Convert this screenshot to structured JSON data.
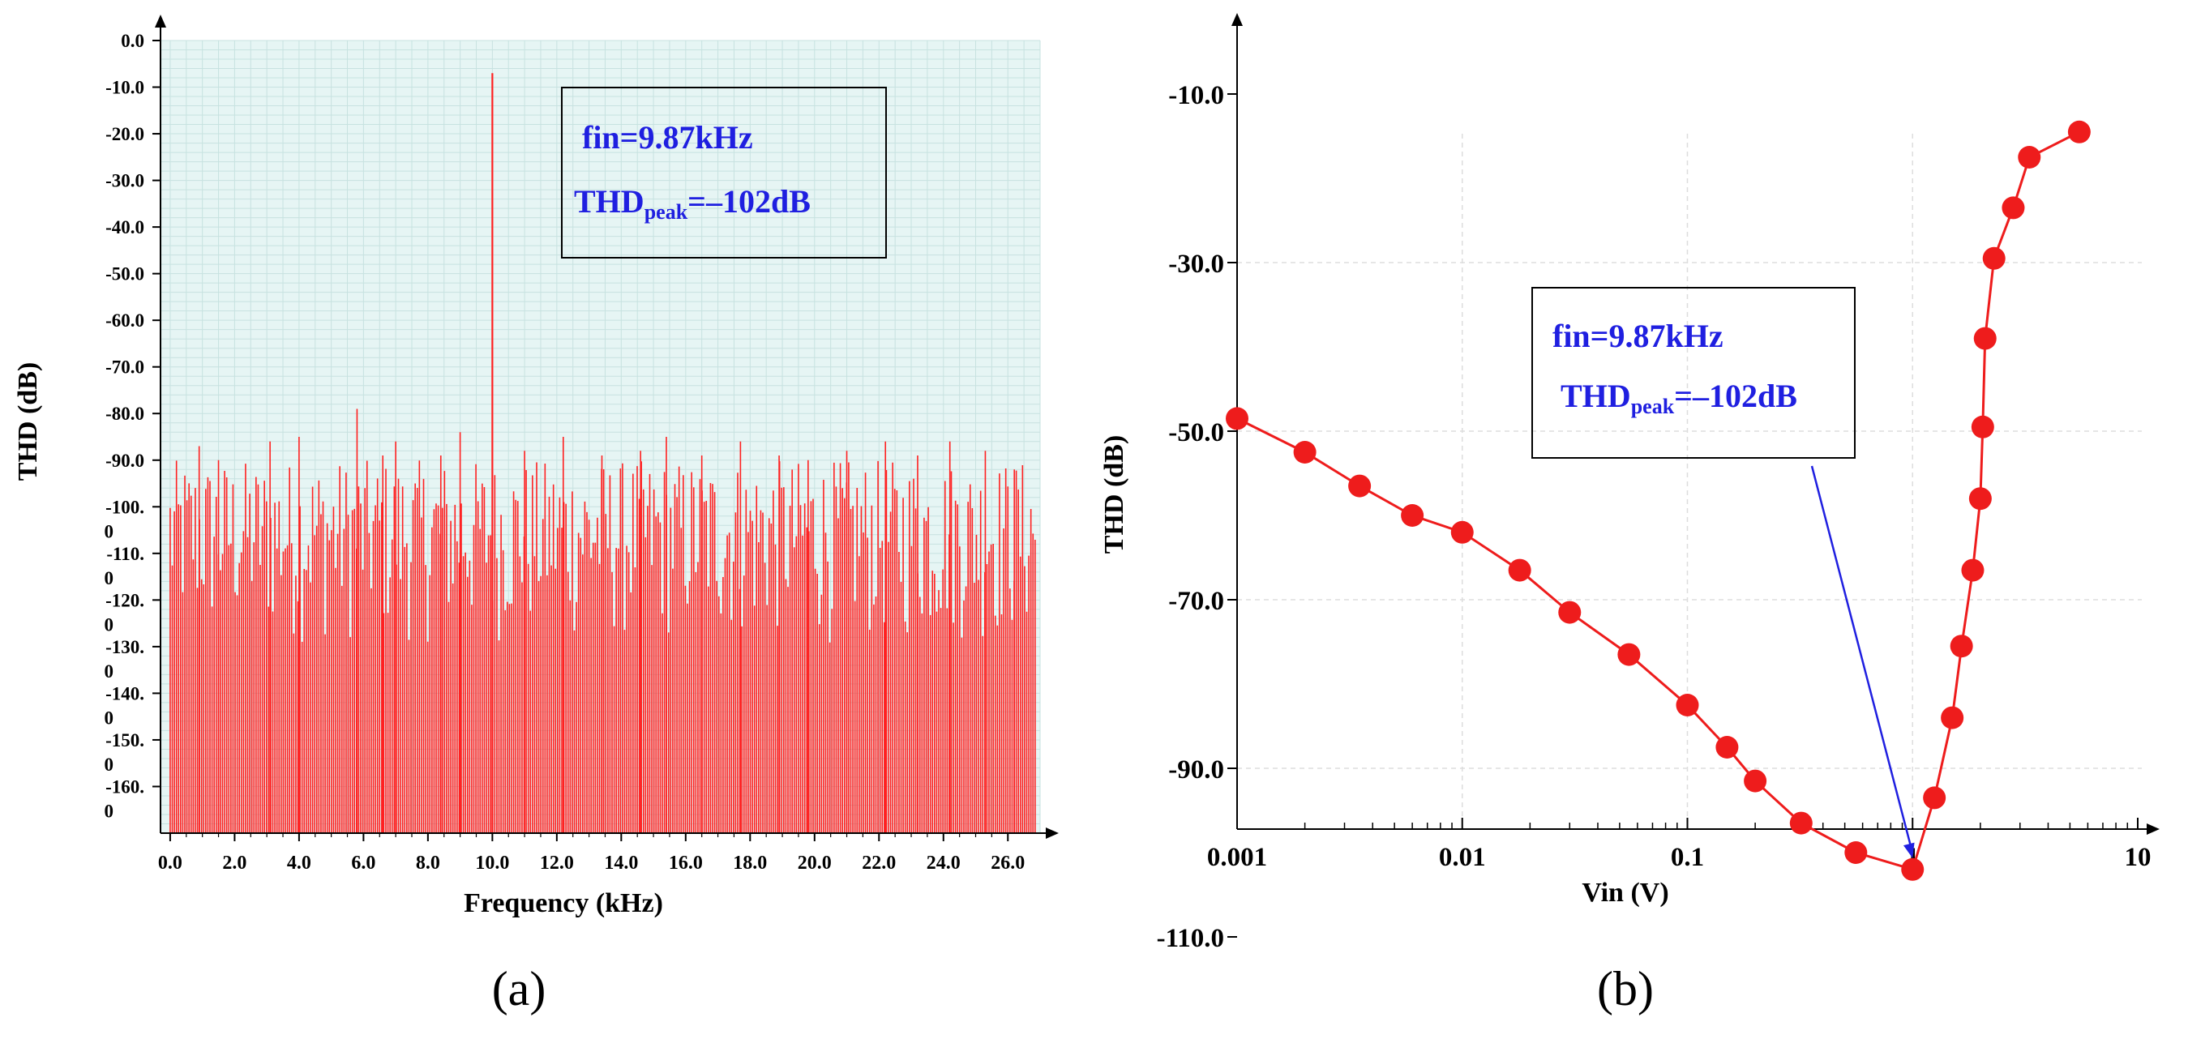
{
  "chart_data": [
    {
      "type": "bar",
      "panel_label": "(a)",
      "xlabel": "Frequency (kHz)",
      "ylabel": "THD (dB)",
      "xlim": [
        -0.3,
        27.0
      ],
      "ylim": [
        -170,
        0
      ],
      "x_tick_labels": [
        "0.0",
        "2.0",
        "4.0",
        "6.0",
        "8.0",
        "10.0",
        "12.0",
        "14.0",
        "16.0",
        "18.0",
        "20.0",
        "22.0",
        "24.0",
        "26.0"
      ],
      "y_tick_labels": [
        {
          "line1": "0.0",
          "line2": ""
        },
        {
          "line1": "-10.0",
          "line2": ""
        },
        {
          "line1": "-20.0",
          "line2": ""
        },
        {
          "line1": "-30.0",
          "line2": ""
        },
        {
          "line1": "-40.0",
          "line2": ""
        },
        {
          "line1": "-50.0",
          "line2": ""
        },
        {
          "line1": "-60.0",
          "line2": ""
        },
        {
          "line1": "-70.0",
          "line2": ""
        },
        {
          "line1": "-80.0",
          "line2": ""
        },
        {
          "line1": "-90.0",
          "line2": ""
        },
        {
          "line1": "-100.",
          "line2": "0"
        },
        {
          "line1": "-110.",
          "line2": "0"
        },
        {
          "line1": "-120.",
          "line2": "0"
        },
        {
          "line1": "-130.",
          "line2": "0"
        },
        {
          "line1": "-140.",
          "line2": "0"
        },
        {
          "line1": "-150.",
          "line2": "0"
        },
        {
          "line1": "-160.",
          "line2": "0"
        }
      ],
      "fundamental": {
        "x": 10.0,
        "y": -7.0
      },
      "noise_floor_range_db": [
        -130,
        -90
      ],
      "notable_spurs": [
        {
          "x": 5.8,
          "y": -79
        },
        {
          "x": 3.1,
          "y": -86
        },
        {
          "x": 4.0,
          "y": -85
        },
        {
          "x": 7.0,
          "y": -86
        },
        {
          "x": 9.0,
          "y": -84
        },
        {
          "x": 12.2,
          "y": -85
        },
        {
          "x": 15.4,
          "y": -85
        },
        {
          "x": 17.7,
          "y": -86
        },
        {
          "x": 22.2,
          "y": -86
        },
        {
          "x": 24.2,
          "y": -86
        },
        {
          "x": 0.9,
          "y": -87
        },
        {
          "x": 1.5,
          "y": -90
        },
        {
          "x": 6.6,
          "y": -89
        },
        {
          "x": 8.4,
          "y": -89
        },
        {
          "x": 11.0,
          "y": -88
        },
        {
          "x": 13.4,
          "y": -89
        },
        {
          "x": 14.6,
          "y": -88
        },
        {
          "x": 16.5,
          "y": -89
        },
        {
          "x": 18.9,
          "y": -89
        },
        {
          "x": 19.8,
          "y": -90
        },
        {
          "x": 21.0,
          "y": -88
        },
        {
          "x": 23.2,
          "y": -89
        },
        {
          "x": 25.3,
          "y": -88
        },
        {
          "x": 26.2,
          "y": -92
        }
      ],
      "legend": {
        "line1": "fin=9.87kHz",
        "thd_main": "THD",
        "thd_sub": "peak",
        "thd_value": "=–102dB"
      },
      "colors": {
        "bars": "#ff2020",
        "background": "#e6f5f4",
        "grid": "#c7e2e0",
        "legend_text": "#1f1fe0"
      }
    },
    {
      "type": "line",
      "panel_label": "(b)",
      "xlabel": "Vin (V)",
      "ylabel": "THD (dB)",
      "x_scale": "log",
      "xlim": [
        0.001,
        10
      ],
      "ylim": [
        -112,
        0
      ],
      "x_tick_labels": [
        "0.001",
        "0.01",
        "0.1",
        "1",
        "10"
      ],
      "y_tick_labels": [
        "-10.0",
        "-30.0",
        "-50.0",
        "-70.0",
        "-90.0",
        "-110.0"
      ],
      "grid": true,
      "series": [
        {
          "x": [
            0.001,
            0.002,
            0.0035,
            0.006,
            0.01,
            0.018,
            0.03,
            0.055,
            0.1,
            0.15,
            0.2,
            0.32,
            0.56,
            1.0,
            1.25,
            1.5,
            1.65,
            1.85,
            2.0,
            2.05,
            2.1,
            2.3,
            2.8,
            3.3,
            5.5
          ],
          "y": [
            -48.5,
            -52.5,
            -56.5,
            -60.0,
            -62.0,
            -66.5,
            -71.5,
            -76.5,
            -82.5,
            -87.5,
            -91.5,
            -96.5,
            -100.0,
            -102.0,
            -93.5,
            -84.0,
            -75.5,
            -66.5,
            -58.0,
            -49.5,
            -39.0,
            -29.5,
            -23.5,
            -17.5,
            -14.5
          ]
        }
      ],
      "annotation": {
        "line1": "fin=9.87kHz",
        "thd_main": "THD",
        "thd_sub": "peak",
        "thd_value": "=–102dB",
        "points_to": {
          "x": 1.0,
          "y": -102.0
        }
      },
      "colors": {
        "line": "#ee1c1c",
        "marker": "#ee1c1c",
        "grid": "#dddddd",
        "annotation": "#1f1fe0"
      }
    }
  ]
}
